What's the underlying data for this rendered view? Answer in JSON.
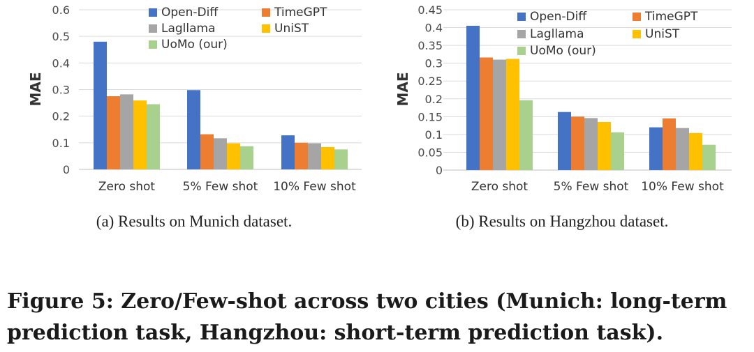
{
  "chart_data": [
    {
      "type": "bar",
      "ylabel": "MAE",
      "ylim": [
        0,
        0.6
      ],
      "yticks": [
        "0",
        "0.1",
        "0.2",
        "0.3",
        "0.4",
        "0.5",
        "0.6"
      ],
      "grid": true,
      "legend_position": "top-right",
      "categories": [
        "Zero shot",
        "5% Few shot",
        "10% Few shot"
      ],
      "series": [
        {
          "name": "Open-Diff",
          "color": "#4472c4",
          "values": [
            0.48,
            0.298,
            0.128
          ]
        },
        {
          "name": "TimeGPT",
          "color": "#ed7d31",
          "values": [
            0.275,
            0.132,
            0.1
          ]
        },
        {
          "name": "Lagllama",
          "color": "#a5a5a5",
          "values": [
            0.282,
            0.117,
            0.098
          ]
        },
        {
          "name": "UniST",
          "color": "#ffc000",
          "values": [
            0.259,
            0.098,
            0.084
          ]
        },
        {
          "name": "UoMo (our)",
          "color": "#a9d18e",
          "values": [
            0.245,
            0.087,
            0.075
          ]
        }
      ],
      "caption": "(a)  Results on Munich dataset."
    },
    {
      "type": "bar",
      "ylabel": "MAE",
      "ylim": [
        0,
        0.45
      ],
      "yticks": [
        "0",
        "0.05",
        "0.1",
        "0.15",
        "0.2",
        "0.25",
        "0.3",
        "0.35",
        "0.4",
        "0.45"
      ],
      "grid": true,
      "legend_position": "top-right",
      "categories": [
        "Zero shot",
        "5% Few shot",
        "10% Few shot"
      ],
      "series": [
        {
          "name": "Open-Diff",
          "color": "#4472c4",
          "values": [
            0.405,
            0.163,
            0.12
          ]
        },
        {
          "name": "TimeGPT",
          "color": "#ed7d31",
          "values": [
            0.316,
            0.15,
            0.145
          ]
        },
        {
          "name": "Lagllama",
          "color": "#a5a5a5",
          "values": [
            0.31,
            0.146,
            0.118
          ]
        },
        {
          "name": "UniST",
          "color": "#ffc000",
          "values": [
            0.312,
            0.135,
            0.104
          ]
        },
        {
          "name": "UoMo (our)",
          "color": "#a9d18e",
          "values": [
            0.196,
            0.106,
            0.071
          ]
        }
      ],
      "caption": "(b)  Results on Hangzhou dataset."
    }
  ],
  "figure_caption": {
    "line1": "Figure 5: Zero/Few-shot across two cities (Munich: long-term",
    "line2": "prediction task, Hangzhou: short-term prediction task)."
  }
}
